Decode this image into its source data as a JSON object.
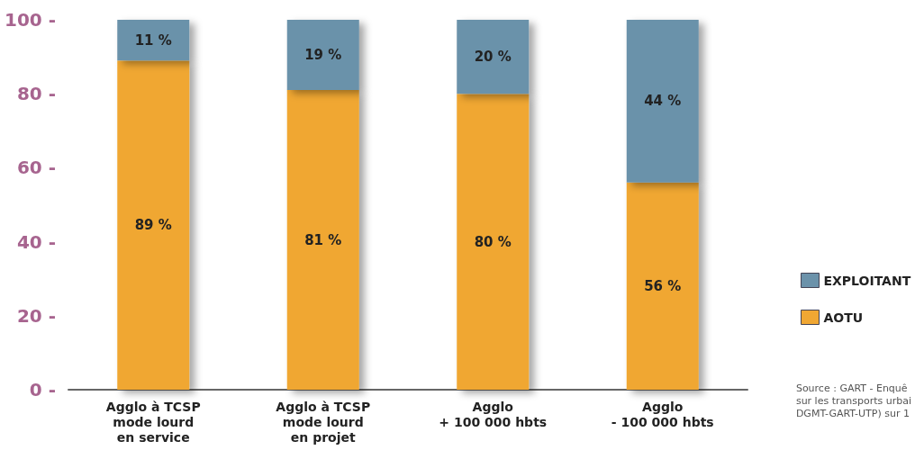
{
  "chart_data": {
    "type": "bar",
    "stacked": true,
    "categories": [
      "Agglo à TCSP\nmode lourd\nen service",
      "Agglo à TCSP\nmode lourd\nen projet",
      "Agglo\n+ 100 000 hbts",
      "Agglo\n- 100 000 hbts"
    ],
    "series": [
      {
        "name": "AOTU",
        "color": "#f0a733",
        "values": [
          89,
          81,
          80,
          56
        ],
        "value_labels": [
          "89 %",
          "81 %",
          "80 %",
          "56 %"
        ]
      },
      {
        "name": "EXPLOITANT",
        "color": "#6b92aa",
        "values": [
          11,
          19,
          20,
          44
        ],
        "value_labels": [
          "11 %",
          "19 %",
          "20 %",
          "44 %"
        ]
      }
    ],
    "ylim": [
      0,
      100
    ],
    "yticks": [
      {
        "value": 0,
        "label": "0 -"
      },
      {
        "value": 20,
        "label": "20 -"
      },
      {
        "value": 40,
        "label": "40 -"
      },
      {
        "value": 60,
        "label": "60 -"
      },
      {
        "value": 80,
        "label": "80 -"
      },
      {
        "value": 100,
        "label": "100 -"
      }
    ],
    "grid": false,
    "legend": "right",
    "annotations": [
      "Source : GART - Enquê\nsur les transports urbai\nDGMT-GART-UTP) sur 1"
    ]
  }
}
